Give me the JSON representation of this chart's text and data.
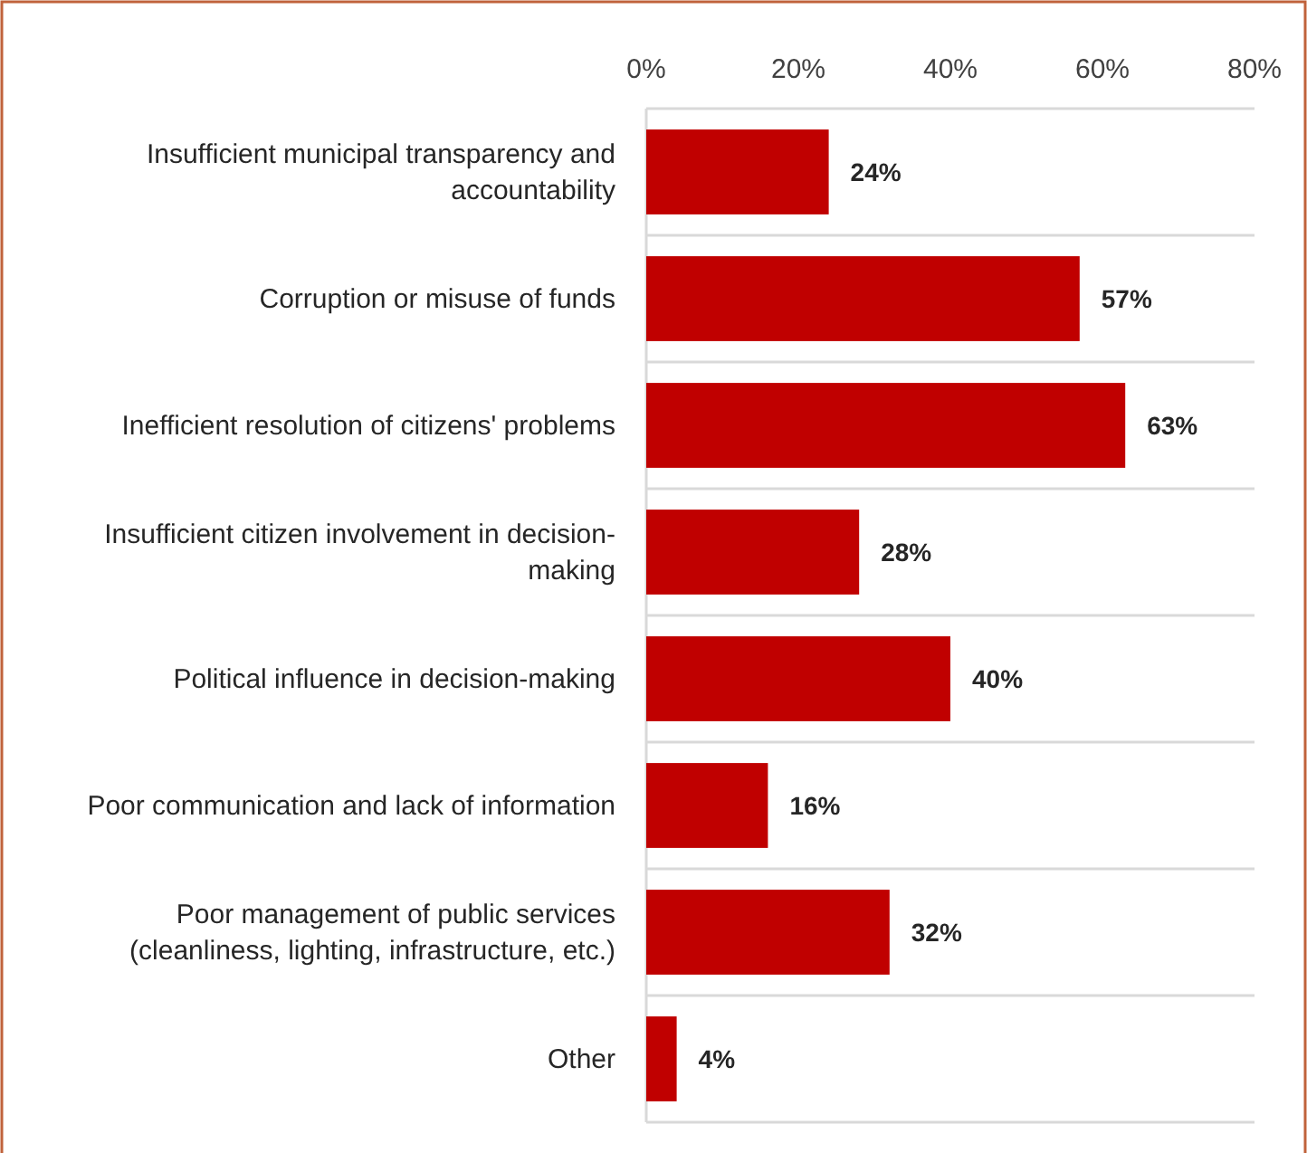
{
  "chart_data": {
    "type": "bar",
    "orientation": "horizontal",
    "categories": [
      "Insufficient municipal transparency and accountability",
      "Corruption or misuse of funds",
      "Inefficient resolution of citizens' problems",
      "Insufficient citizen involvement in decision-making",
      "Political influence in decision-making",
      "Poor communication and lack of information",
      "Poor management of public services (cleanliness, lighting, infrastructure, etc.)",
      "Other"
    ],
    "values": [
      24,
      57,
      63,
      28,
      40,
      16,
      32,
      4
    ],
    "value_labels": [
      "24%",
      "57%",
      "63%",
      "28%",
      "40%",
      "16%",
      "32%",
      "4%"
    ],
    "color": "#c00000",
    "xlim": [
      0,
      80
    ],
    "xticks": [
      {
        "value": 0,
        "label": "0%"
      },
      {
        "value": 20,
        "label": "20%"
      },
      {
        "value": 40,
        "label": "40%"
      },
      {
        "value": 60,
        "label": "60%"
      },
      {
        "value": 80,
        "label": "80%"
      }
    ],
    "grid": "y"
  }
}
